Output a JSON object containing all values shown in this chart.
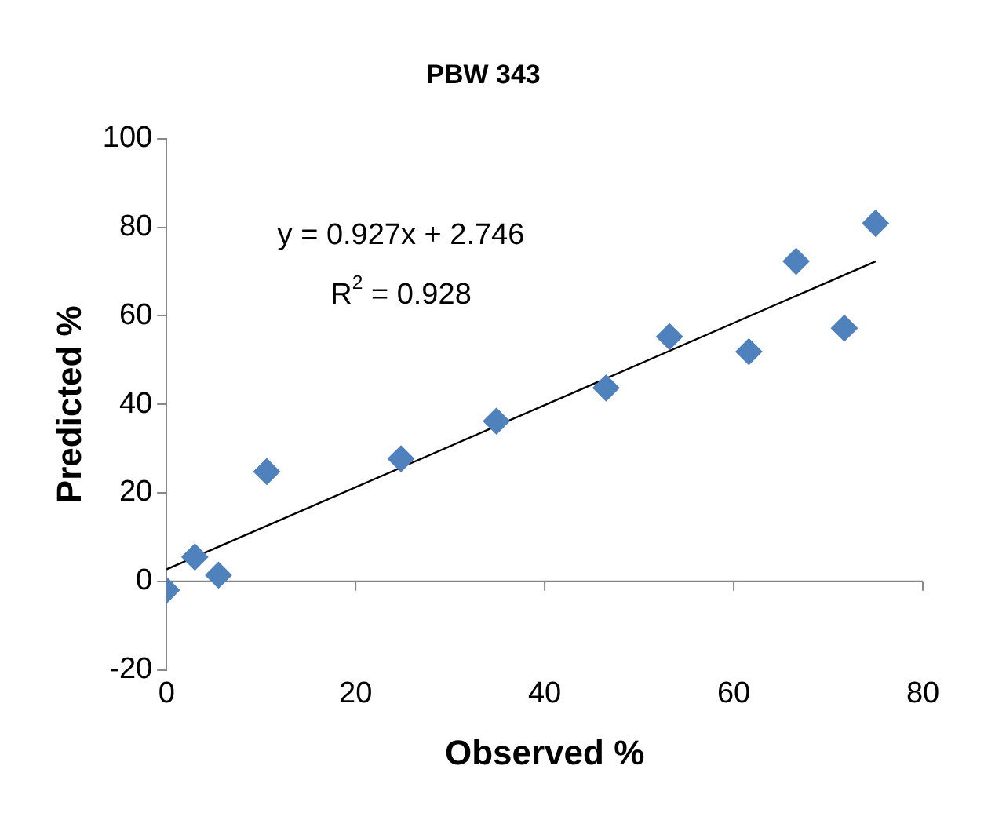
{
  "chart_data": {
    "type": "scatter",
    "title": "PBW 343",
    "xlabel": "Observed %",
    "ylabel": "Predicted %",
    "xlim": [
      0,
      80
    ],
    "xticks": [
      0,
      20,
      40,
      60,
      80
    ],
    "ylim": [
      -20,
      100
    ],
    "yticks": [
      -20,
      0,
      20,
      40,
      60,
      80,
      100
    ],
    "annotations": [
      "y = 0.927x + 2.746",
      "R$^{2}$ = 0.928"
    ],
    "series": [
      {
        "type": "scatter",
        "color": "#4f81bd",
        "marker": "diamond",
        "x": [
          0,
          3,
          5.5,
          10.6,
          24.8,
          34.9,
          46.5,
          53.2,
          61.6,
          66.6,
          71.7,
          75
        ],
        "values": [
          -2,
          5.5,
          1.4,
          24.8,
          27.7,
          36.2,
          43.7,
          55.3,
          51.9,
          72.3,
          57.2,
          80.9
        ]
      },
      {
        "type": "line",
        "color": "#000000",
        "marker": "none",
        "x": [
          0,
          75
        ],
        "values": [
          2.7,
          72.3
        ]
      }
    ]
  }
}
